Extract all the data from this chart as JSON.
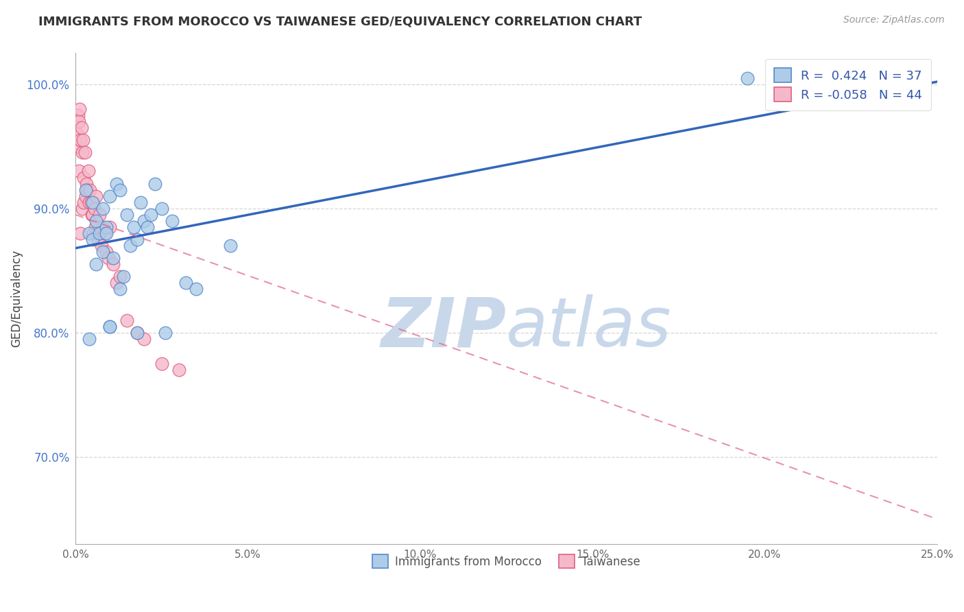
{
  "title": "IMMIGRANTS FROM MOROCCO VS TAIWANESE GED/EQUIVALENCY CORRELATION CHART",
  "source": "Source: ZipAtlas.com",
  "ylabel": "GED/Equivalency",
  "xlim": [
    0.0,
    25.0
  ],
  "ylim": [
    63.0,
    102.5
  ],
  "xticks": [
    0.0,
    5.0,
    10.0,
    15.0,
    20.0,
    25.0
  ],
  "xtick_labels": [
    "0.0%",
    "5.0%",
    "10.0%",
    "15.0%",
    "20.0%",
    "25.0%"
  ],
  "yticks": [
    70.0,
    80.0,
    90.0,
    100.0
  ],
  "ytick_labels": [
    "70.0%",
    "80.0%",
    "90.0%",
    "100.0%"
  ],
  "r_blue": 0.424,
  "n_blue": 37,
  "r_pink": -0.058,
  "n_pink": 44,
  "blue_color": "#aecce8",
  "blue_edge": "#5588cc",
  "pink_color": "#f5b8ca",
  "pink_edge": "#e06080",
  "blue_line_color": "#3366bb",
  "pink_line_color": "#dd6688",
  "watermark_zip": "ZIP",
  "watermark_atlas": "atlas",
  "watermark_color": "#c8d8ea",
  "background": "#ffffff",
  "grid_color": "#cccccc",
  "legend_color": "#3355aa",
  "blue_scatter_x": [
    0.3,
    0.4,
    0.5,
    0.5,
    0.6,
    0.6,
    0.7,
    0.8,
    0.8,
    0.9,
    0.9,
    1.0,
    1.0,
    1.1,
    1.2,
    1.3,
    1.3,
    1.4,
    1.5,
    1.6,
    1.7,
    1.8,
    1.8,
    1.9,
    2.0,
    2.1,
    2.2,
    2.3,
    2.5,
    2.6,
    2.8,
    3.2,
    3.5,
    0.4,
    1.0,
    4.5,
    19.5
  ],
  "blue_scatter_y": [
    91.5,
    88.0,
    90.5,
    87.5,
    89.0,
    85.5,
    88.0,
    90.0,
    86.5,
    88.5,
    88.0,
    91.0,
    80.5,
    86.0,
    92.0,
    91.5,
    83.5,
    84.5,
    89.5,
    87.0,
    88.5,
    87.5,
    80.0,
    90.5,
    89.0,
    88.5,
    89.5,
    92.0,
    90.0,
    80.0,
    89.0,
    84.0,
    83.5,
    79.5,
    80.5,
    87.0,
    100.5
  ],
  "pink_scatter_x": [
    0.05,
    0.05,
    0.08,
    0.1,
    0.1,
    0.12,
    0.15,
    0.15,
    0.18,
    0.2,
    0.2,
    0.22,
    0.25,
    0.25,
    0.28,
    0.3,
    0.32,
    0.35,
    0.38,
    0.4,
    0.42,
    0.45,
    0.48,
    0.5,
    0.52,
    0.55,
    0.58,
    0.6,
    0.65,
    0.7,
    0.75,
    0.8,
    0.85,
    0.9,
    0.95,
    1.0,
    1.1,
    1.2,
    1.3,
    1.5,
    1.8,
    2.0,
    2.5,
    3.0
  ],
  "pink_scatter_y": [
    96.0,
    95.0,
    97.5,
    97.0,
    93.0,
    98.0,
    95.5,
    88.0,
    96.5,
    94.5,
    90.0,
    95.5,
    92.5,
    90.5,
    94.5,
    91.0,
    92.0,
    91.5,
    93.0,
    90.5,
    91.5,
    90.5,
    89.5,
    89.5,
    88.0,
    90.0,
    88.5,
    91.0,
    87.5,
    89.5,
    87.0,
    88.5,
    88.0,
    86.5,
    86.0,
    88.5,
    85.5,
    84.0,
    84.5,
    81.0,
    80.0,
    79.5,
    77.5,
    77.0
  ],
  "blue_trend_x": [
    0.0,
    25.0
  ],
  "blue_trend_y": [
    86.8,
    100.2
  ],
  "pink_trend_x": [
    0.0,
    25.0
  ],
  "pink_trend_y": [
    89.5,
    65.0
  ]
}
